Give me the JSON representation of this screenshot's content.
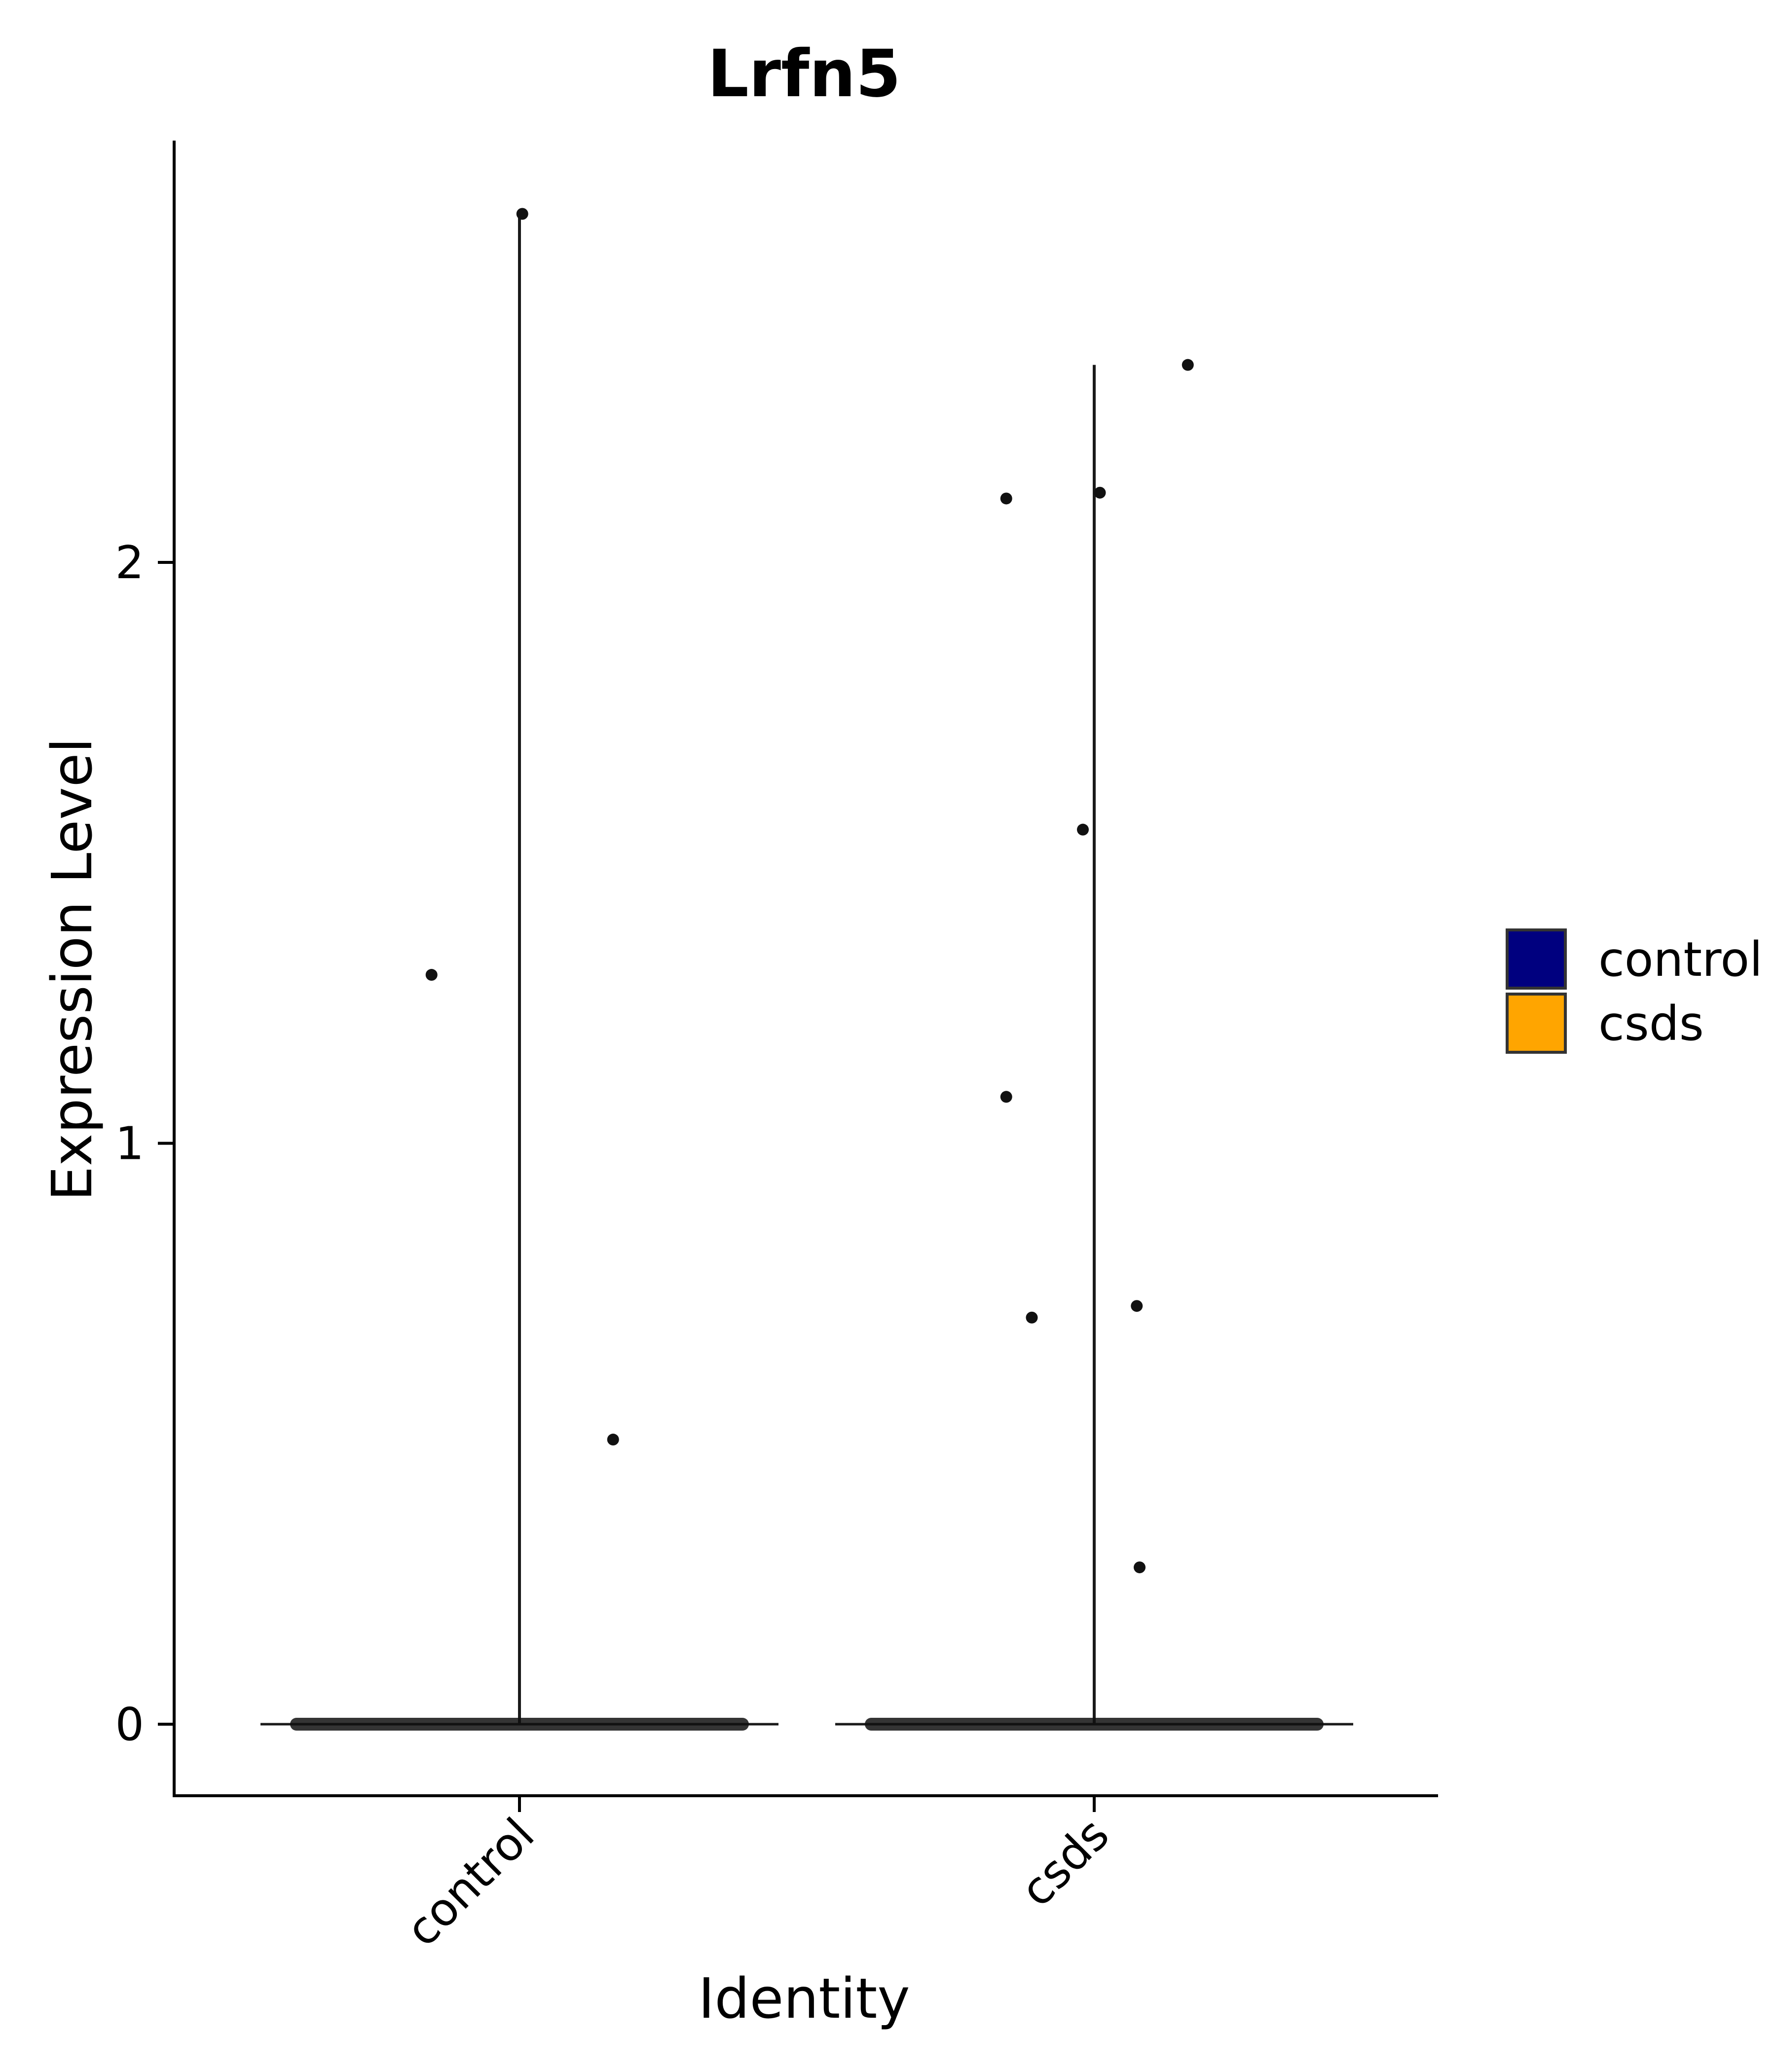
{
  "chart_data": {
    "type": "violin",
    "title": "Lrfn5",
    "xlabel": "Identity",
    "ylabel": "Expression Level",
    "categories": [
      "control",
      "csds"
    ],
    "ylim": [
      -0.13,
      2.72
    ],
    "yticks": [
      0,
      1,
      2
    ],
    "ytick_labels": [
      "0",
      "1",
      "2"
    ],
    "grid": false,
    "legend": {
      "placement": "right",
      "entries": [
        {
          "label": "control",
          "color": "#00007F"
        },
        {
          "label": "csds",
          "color": "#FFA500"
        }
      ]
    },
    "series": [
      {
        "name": "control",
        "color": "#00007F",
        "violin_max": 2.6,
        "points": [
          {
            "x_offset": 0.01,
            "y": 2.6
          },
          {
            "x_offset": -0.31,
            "y": 1.29
          },
          {
            "x_offset": 0.33,
            "y": 0.49
          }
        ],
        "zero_count": "many"
      },
      {
        "name": "csds",
        "color": "#FFA500",
        "violin_max": 2.34,
        "points": [
          {
            "x_offset": 0.33,
            "y": 2.34
          },
          {
            "x_offset": -0.31,
            "y": 2.11
          },
          {
            "x_offset": 0.02,
            "y": 2.12
          },
          {
            "x_offset": -0.04,
            "y": 1.54
          },
          {
            "x_offset": -0.31,
            "y": 1.08
          },
          {
            "x_offset": -0.22,
            "y": 0.7
          },
          {
            "x_offset": 0.15,
            "y": 0.72
          },
          {
            "x_offset": 0.16,
            "y": 0.27
          }
        ],
        "zero_count": "many"
      }
    ]
  }
}
